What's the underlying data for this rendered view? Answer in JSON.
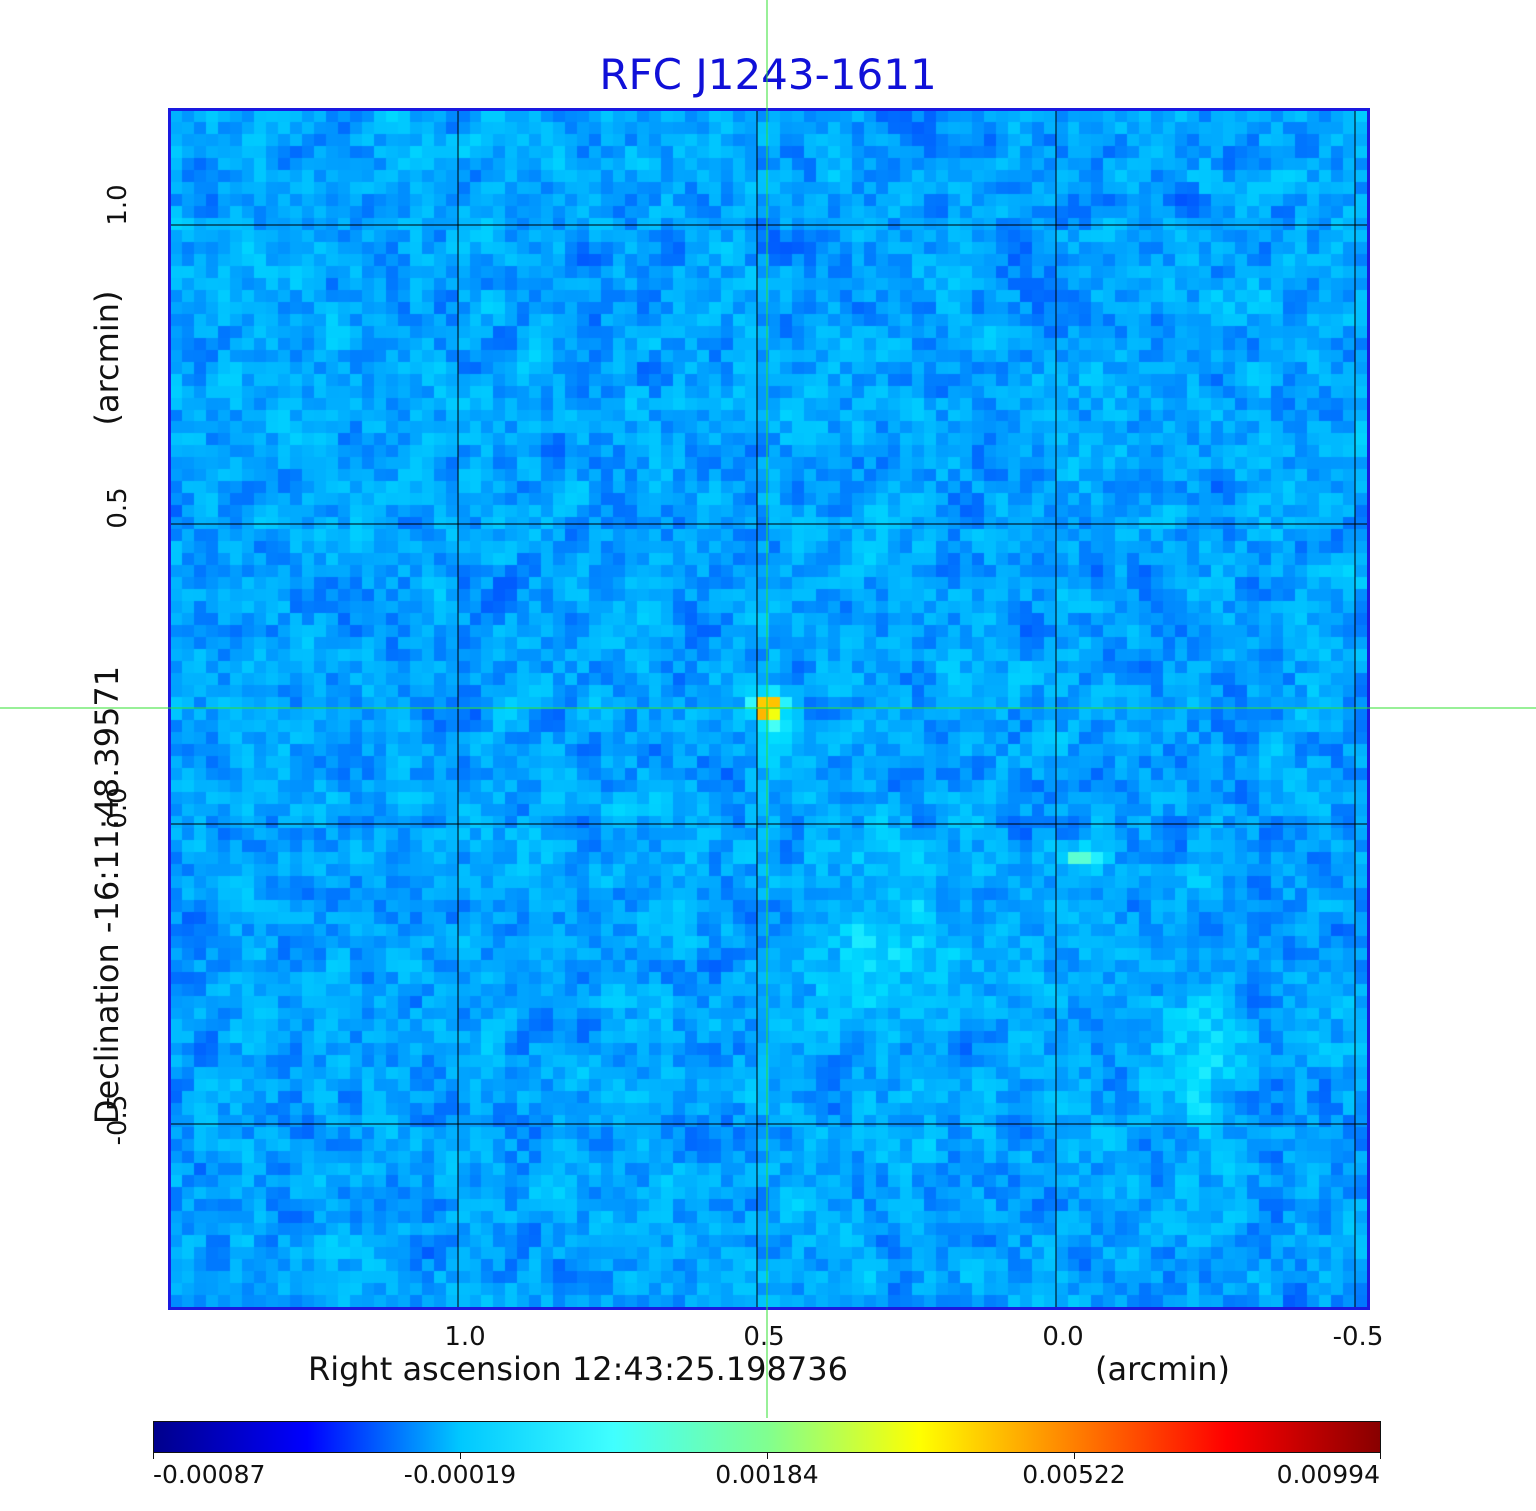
{
  "title": "RFC J1243-1611",
  "x_axis": {
    "label": "Right ascension  12:43:25.198736",
    "unit": "(arcmin)",
    "ticks": [
      "1.0",
      "0.5",
      "0.0",
      "-0.5"
    ]
  },
  "y_axis": {
    "label": "Declination  -16:11:48.39571",
    "unit": "(arcmin)",
    "ticks": [
      "1.0",
      "0.5",
      "0.0",
      "-0.5"
    ]
  },
  "colorbar": {
    "ticks": [
      "-0.00087",
      "-0.00019",
      "0.00184",
      "0.00522",
      "0.00994"
    ],
    "colors": [
      "#00008c",
      "#0000ff",
      "#00c8ff",
      "#40ffff",
      "#80ff90",
      "#ffff00",
      "#ff8000",
      "#ff0000",
      "#880000"
    ]
  },
  "colors": {
    "title": "#1010d8",
    "frame": "#1a1ae0",
    "crosshair": "#30e030",
    "grid": "#000000"
  }
}
